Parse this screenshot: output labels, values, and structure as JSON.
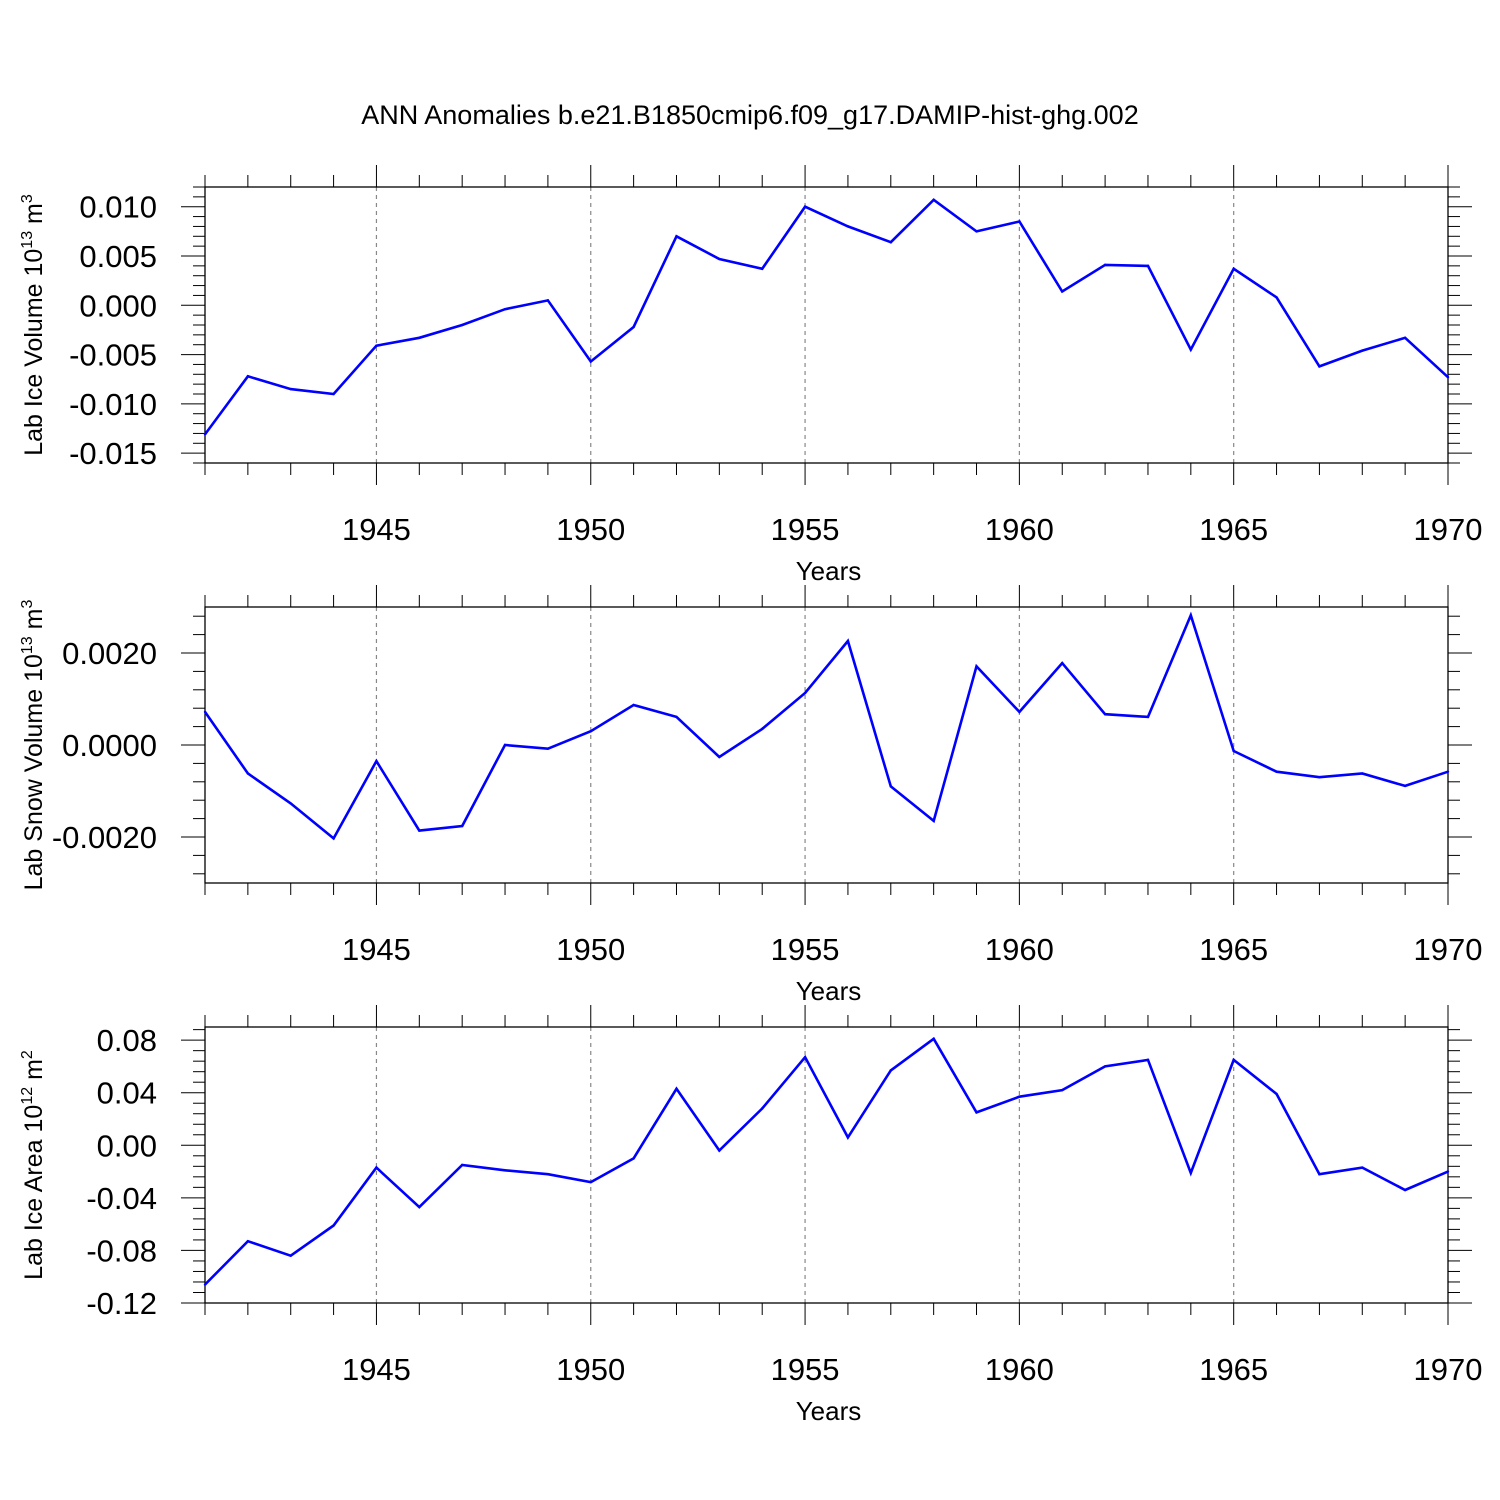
{
  "title": "ANN Anomalies b.e21.B1850cmip6.f09_g17.DAMIP-hist-ghg.002",
  "colors": {
    "line": "#0000ff",
    "axis": "#000000",
    "grid": "#888888"
  },
  "chart_data": [
    {
      "type": "line",
      "ylabel": "Lab Ice Volume 10",
      "ylabel_exp": "13",
      "ylabel_unit": " m",
      "ylabel_unit_exp": "3",
      "xlabel": "Years",
      "xlim": [
        1941,
        1970
      ],
      "ylim": [
        -0.016,
        0.012
      ],
      "x_ticks": [
        "1945",
        "1950",
        "1955",
        "1960",
        "1965",
        "1970"
      ],
      "y_ticks": [
        "0.010",
        "0.005",
        "0.000",
        "-0.005",
        "-0.010",
        "-0.015"
      ],
      "x": [
        1941,
        1942,
        1943,
        1944,
        1945,
        1946,
        1947,
        1948,
        1949,
        1950,
        1951,
        1952,
        1953,
        1954,
        1955,
        1956,
        1957,
        1958,
        1959,
        1960,
        1961,
        1962,
        1963,
        1964,
        1965,
        1966,
        1967,
        1968,
        1969,
        1970
      ],
      "values": [
        -0.0131,
        -0.0072,
        -0.0085,
        -0.009,
        -0.0041,
        -0.0033,
        -0.002,
        -0.0004,
        0.0005,
        -0.0057,
        -0.0022,
        0.007,
        0.0047,
        0.0037,
        0.01,
        0.008,
        0.0064,
        0.0107,
        0.0075,
        0.0085,
        0.0014,
        0.0041,
        0.004,
        -0.0045,
        0.0037,
        0.0008,
        -0.0062,
        -0.0046,
        -0.0033,
        -0.0073
      ],
      "grid": "vertical-dashed"
    },
    {
      "type": "line",
      "ylabel": "Lab Snow Volume 10",
      "ylabel_exp": "13",
      "ylabel_unit": " m",
      "ylabel_unit_exp": "3",
      "xlabel": "Years",
      "xlim": [
        1941,
        1970
      ],
      "ylim": [
        -0.003,
        0.003
      ],
      "x_ticks": [
        "1945",
        "1950",
        "1955",
        "1960",
        "1965",
        "1970"
      ],
      "y_ticks": [
        "0.0020",
        "0.0000",
        "-0.0020"
      ],
      "x": [
        1941,
        1942,
        1943,
        1944,
        1945,
        1946,
        1947,
        1948,
        1949,
        1950,
        1951,
        1952,
        1953,
        1954,
        1955,
        1956,
        1957,
        1958,
        1959,
        1960,
        1961,
        1962,
        1963,
        1964,
        1965,
        1966,
        1967,
        1968,
        1969,
        1970
      ],
      "values": [
        0.00072,
        -0.00062,
        -0.00127,
        -0.00203,
        -0.00035,
        -0.00186,
        -0.00176,
        0.0,
        -8e-05,
        0.0003,
        0.00087,
        0.00061,
        -0.00026,
        0.00035,
        0.00113,
        0.00226,
        -0.0009,
        -0.00165,
        0.00171,
        0.00072,
        0.00178,
        0.00067,
        0.00061,
        0.00282,
        -0.00013,
        -0.00058,
        -0.0007,
        -0.00062,
        -0.00089,
        -0.00058
      ],
      "grid": "vertical-dashed"
    },
    {
      "type": "line",
      "ylabel": "Lab Ice Area 10",
      "ylabel_exp": "12",
      "ylabel_unit": " m",
      "ylabel_unit_exp": "2",
      "xlabel": "Years",
      "xlim": [
        1941,
        1970
      ],
      "ylim": [
        -0.12,
        0.09
      ],
      "x_ticks": [
        "1945",
        "1950",
        "1955",
        "1960",
        "1965",
        "1970"
      ],
      "y_ticks": [
        "0.08",
        "0.04",
        "0.00",
        "-0.04",
        "-0.08",
        "-0.12"
      ],
      "x": [
        1941,
        1942,
        1943,
        1944,
        1945,
        1946,
        1947,
        1948,
        1949,
        1950,
        1951,
        1952,
        1953,
        1954,
        1955,
        1956,
        1957,
        1958,
        1959,
        1960,
        1961,
        1962,
        1963,
        1964,
        1965,
        1966,
        1967,
        1968,
        1969,
        1970
      ],
      "values": [
        -0.106,
        -0.073,
        -0.084,
        -0.061,
        -0.017,
        -0.047,
        -0.015,
        -0.019,
        -0.022,
        -0.028,
        -0.01,
        0.043,
        -0.004,
        0.028,
        0.067,
        0.006,
        0.057,
        0.081,
        0.025,
        0.037,
        0.042,
        0.06,
        0.065,
        -0.021,
        0.065,
        0.039,
        -0.022,
        -0.017,
        -0.034,
        -0.02
      ],
      "grid": "vertical-dashed"
    }
  ]
}
